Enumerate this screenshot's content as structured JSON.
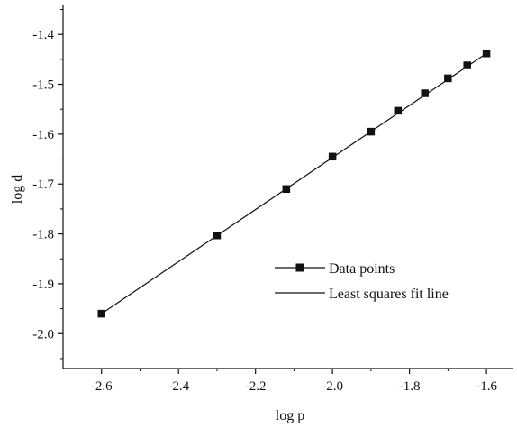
{
  "chart_data": {
    "type": "scatter",
    "title": "",
    "xlabel": "log p",
    "ylabel": "log d",
    "xlim": [
      -2.7,
      -1.53
    ],
    "ylim": [
      -2.07,
      -1.34
    ],
    "x_ticks": [
      -2.6,
      -2.4,
      -2.2,
      -2.0,
      -1.8,
      -1.6
    ],
    "x_tick_labels": [
      "-2.6",
      "-2.4",
      "-2.2",
      "-2.0",
      "-1.8",
      "-1.6"
    ],
    "y_ticks": [
      -2.0,
      -1.9,
      -1.8,
      -1.7,
      -1.6,
      -1.5,
      -1.4
    ],
    "y_tick_labels": [
      "-2.0",
      "-1.9",
      "-1.8",
      "-1.7",
      "-1.6",
      "-1.5",
      "-1.4"
    ],
    "grid": false,
    "legend_position": "bottom-right",
    "series": [
      {
        "name": "Data points",
        "marker": "square",
        "color": "#111111",
        "x": [
          -2.6,
          -2.3,
          -2.12,
          -2.0,
          -1.9,
          -1.83,
          -1.76,
          -1.7,
          -1.65,
          -1.6
        ],
        "y": [
          -1.96,
          -1.803,
          -1.71,
          -1.645,
          -1.595,
          -1.553,
          -1.518,
          -1.488,
          -1.462,
          -1.438
        ]
      },
      {
        "name": "Least squares fit line",
        "marker": "none",
        "color": "#111111",
        "x": [
          -2.6,
          -1.6
        ],
        "y": [
          -1.96,
          -1.438
        ]
      }
    ]
  }
}
